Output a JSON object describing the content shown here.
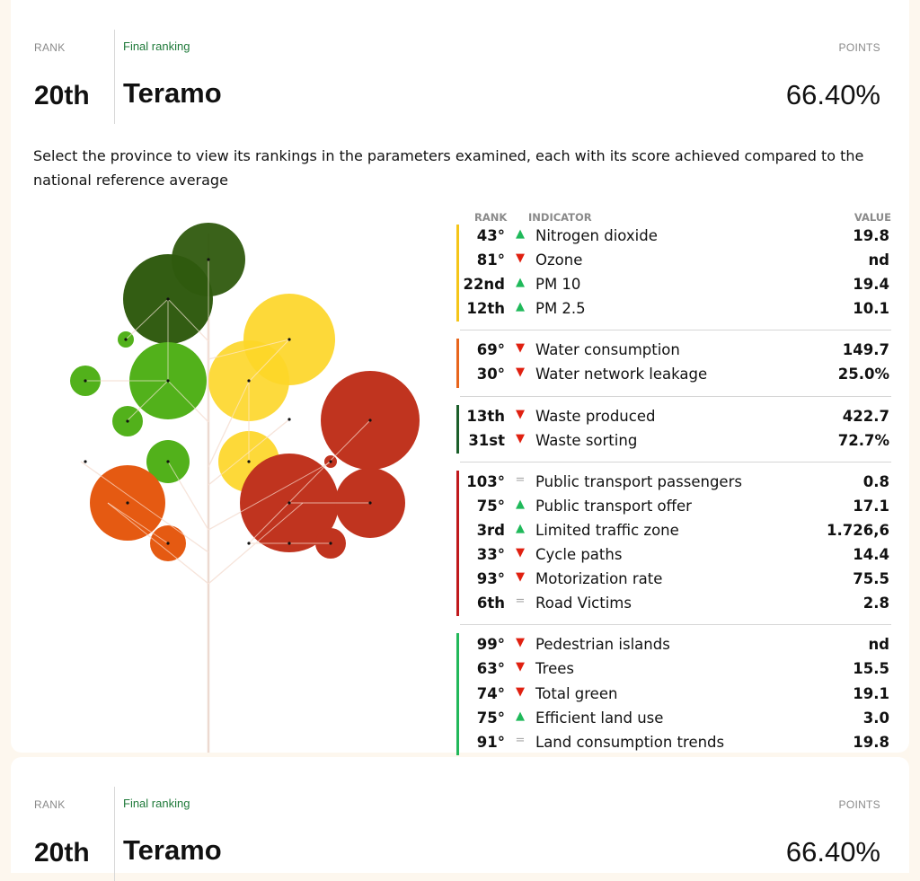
{
  "header": {
    "rank_label": "RANK",
    "final_label": "Final ranking",
    "points_label": "POINTS",
    "rank": "20th",
    "province": "Teramo",
    "points": "66.40%"
  },
  "description": "Select the province to view its rankings in the parameters examined, each with its score achieved compared to the national reference average",
  "table": {
    "col_rank": "RANK",
    "col_indicator": "INDICATOR",
    "col_value": "VALUE",
    "groups": [
      {
        "color": "#f5c518",
        "rows": [
          {
            "rank": "43°",
            "trend": "up",
            "indicator": "Nitrogen dioxide",
            "value": "19.8"
          },
          {
            "rank": "81°",
            "trend": "down",
            "indicator": "Ozone",
            "value": "nd"
          },
          {
            "rank": "22nd",
            "trend": "up",
            "indicator": "PM 10",
            "value": "19.4"
          },
          {
            "rank": "12th",
            "trend": "up",
            "indicator": "PM 2.5",
            "value": "10.1"
          }
        ]
      },
      {
        "color": "#e8651c",
        "rows": [
          {
            "rank": "69°",
            "trend": "down",
            "indicator": "Water consumption",
            "value": "149.7"
          },
          {
            "rank": "30°",
            "trend": "down",
            "indicator": "Water network leakage",
            "value": "25.0%"
          }
        ]
      },
      {
        "color": "#1b5e2a",
        "rows": [
          {
            "rank": "13th",
            "trend": "down",
            "indicator": "Waste produced",
            "value": "422.7"
          },
          {
            "rank": "31st",
            "trend": "down",
            "indicator": "Waste sorting",
            "value": "72.7%"
          }
        ]
      },
      {
        "color": "#c0191d",
        "rows": [
          {
            "rank": "103°",
            "trend": "eq",
            "indicator": "Public transport passengers",
            "value": "0.8"
          },
          {
            "rank": "75°",
            "trend": "up",
            "indicator": "Public transport offer",
            "value": "17.1"
          },
          {
            "rank": "3rd",
            "trend": "up",
            "indicator": "Limited traffic zone",
            "value": "1.726,6"
          },
          {
            "rank": "33°",
            "trend": "down",
            "indicator": "Cycle paths",
            "value": "14.4"
          },
          {
            "rank": "93°",
            "trend": "down",
            "indicator": "Motorization rate",
            "value": "75.5"
          },
          {
            "rank": "6th",
            "trend": "eq",
            "indicator": "Road Victims",
            "value": "2.8"
          }
        ]
      },
      {
        "color": "#22b85a",
        "rows": [
          {
            "rank": "99°",
            "trend": "down",
            "indicator": "Pedestrian islands",
            "value": "nd"
          },
          {
            "rank": "63°",
            "trend": "down",
            "indicator": "Trees",
            "value": "15.5"
          },
          {
            "rank": "74°",
            "trend": "down",
            "indicator": "Total green",
            "value": "19.1"
          },
          {
            "rank": "75°",
            "trend": "up",
            "indicator": "Efficient land use",
            "value": "3.0"
          },
          {
            "rank": "91°",
            "trend": "eq",
            "indicator": "Land consumption trends",
            "value": "19.8"
          }
        ]
      }
    ]
  },
  "tree_colors": {
    "dark_green": "#2f5a0e",
    "green": "#52b11b",
    "yellow": "#fdd628",
    "orange": "#e55a12",
    "red": "#c0341f",
    "trunk": "#ecd9d0"
  }
}
